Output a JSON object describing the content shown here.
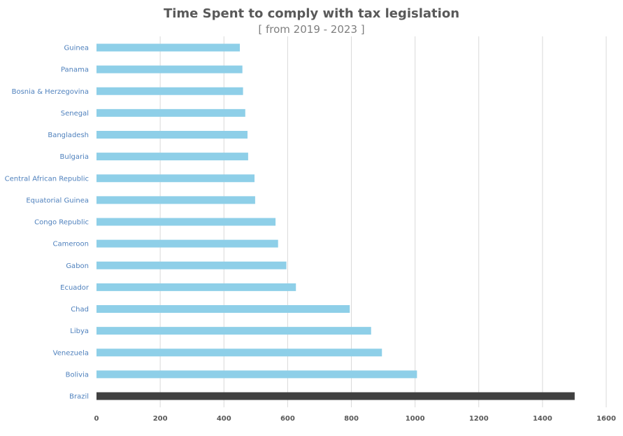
{
  "chart_data": {
    "type": "bar",
    "orientation": "horizontal",
    "title": "Time Spent to comply with tax legislation",
    "subtitle": "[ from 2019 - 2023 ]",
    "xlabel": "",
    "ylabel": "",
    "categories": [
      "Guinea",
      "Panama",
      "Bosnia & Herzegovina",
      "Senegal",
      "Bangladesh",
      "Bulgaria",
      "Central African Republic",
      "Equatorial Guinea",
      "Congo Republic",
      "Cameroon",
      "Gabon",
      "Ecuador",
      "Chad",
      "Libya",
      "Venezuela",
      "Bolivia",
      "Brazil"
    ],
    "values": [
      450,
      458,
      460,
      467,
      474,
      476,
      496,
      498,
      562,
      570,
      596,
      626,
      795,
      862,
      896,
      1006,
      1501
    ],
    "xlim": [
      0,
      1600
    ],
    "xticks": [
      0,
      200,
      400,
      600,
      800,
      1000,
      1200,
      1400,
      1600
    ],
    "grid": "vertical",
    "legend": "none",
    "colors": {
      "default_bar": "#8ecfe8",
      "highlight_bar": "#404040"
    },
    "highlight_category": "Brazil"
  }
}
